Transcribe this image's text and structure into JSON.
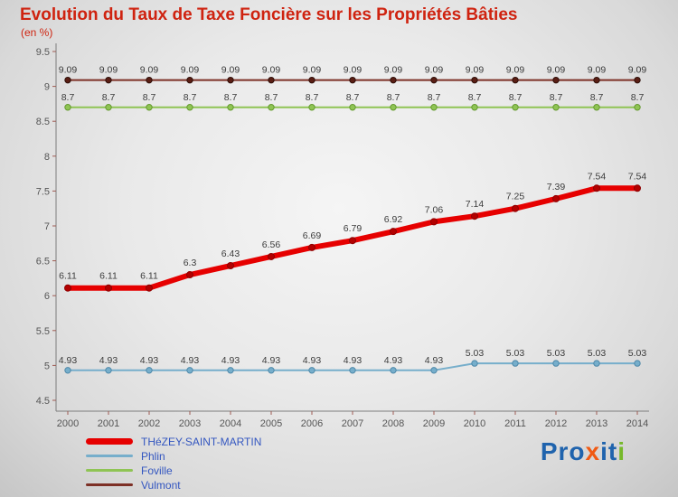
{
  "header": {},
  "colors": {
    "title": "#cf2310",
    "subtitle": "#cf2310",
    "axis": "#7d7d7d",
    "tick": "#9e5a52",
    "tick_label": "#555555",
    "value_label": "#3c3c3c",
    "legend_text": "#3356c0"
  },
  "chart_data": {
    "type": "line",
    "title": "Evolution du Taux de Taxe Foncière sur les Propriétés Bâties",
    "subtitle": "(en %)",
    "xlabel": "",
    "ylabel": "",
    "x": [
      2000,
      2001,
      2002,
      2003,
      2004,
      2005,
      2006,
      2007,
      2008,
      2009,
      2010,
      2011,
      2012,
      2013,
      2014
    ],
    "ylim": [
      4.5,
      9.5
    ],
    "ytick_step": 0.5,
    "grid": false,
    "legend_position": "bottom-left",
    "series": [
      {
        "name": "THéZEY-SAINT-MARTIN",
        "color": "#e60000",
        "marker_color": "#b30000",
        "marker_edge": "#8f0000",
        "line_width": 6,
        "values": [
          6.11,
          6.11,
          6.11,
          6.3,
          6.43,
          6.56,
          6.69,
          6.79,
          6.92,
          7.06,
          7.14,
          7.25,
          7.39,
          7.54,
          7.54
        ]
      },
      {
        "name": "Phlin",
        "color": "#76aecb",
        "marker_color": "#76aecb",
        "marker_edge": "#4d87a8",
        "line_width": 2,
        "values": [
          4.93,
          4.93,
          4.93,
          4.93,
          4.93,
          4.93,
          4.93,
          4.93,
          4.93,
          4.93,
          5.03,
          5.03,
          5.03,
          5.03,
          5.03
        ]
      },
      {
        "name": "Foville",
        "color": "#8fc454",
        "marker_color": "#8fc454",
        "marker_edge": "#649a2e",
        "line_width": 2,
        "values": [
          8.7,
          8.7,
          8.7,
          8.7,
          8.7,
          8.7,
          8.7,
          8.7,
          8.7,
          8.7,
          8.7,
          8.7,
          8.7,
          8.7,
          8.7
        ]
      },
      {
        "name": "Vulmont",
        "color": "#7d3026",
        "marker_color": "#5a1e14",
        "marker_edge": "#2e0e08",
        "line_width": 2,
        "values": [
          9.09,
          9.09,
          9.09,
          9.09,
          9.09,
          9.09,
          9.09,
          9.09,
          9.09,
          9.09,
          9.09,
          9.09,
          9.09,
          9.09,
          9.09
        ]
      }
    ]
  },
  "logo": {
    "letters": [
      {
        "ch": "P",
        "color": "#1f63ad"
      },
      {
        "ch": "r",
        "color": "#1f63ad"
      },
      {
        "ch": "o",
        "color": "#1f63ad"
      },
      {
        "ch": "x",
        "color": "#f05a14"
      },
      {
        "ch": "i",
        "color": "#1f63ad"
      },
      {
        "ch": "t",
        "color": "#1f63ad"
      },
      {
        "ch": "i",
        "color": "#76b82a"
      }
    ]
  }
}
